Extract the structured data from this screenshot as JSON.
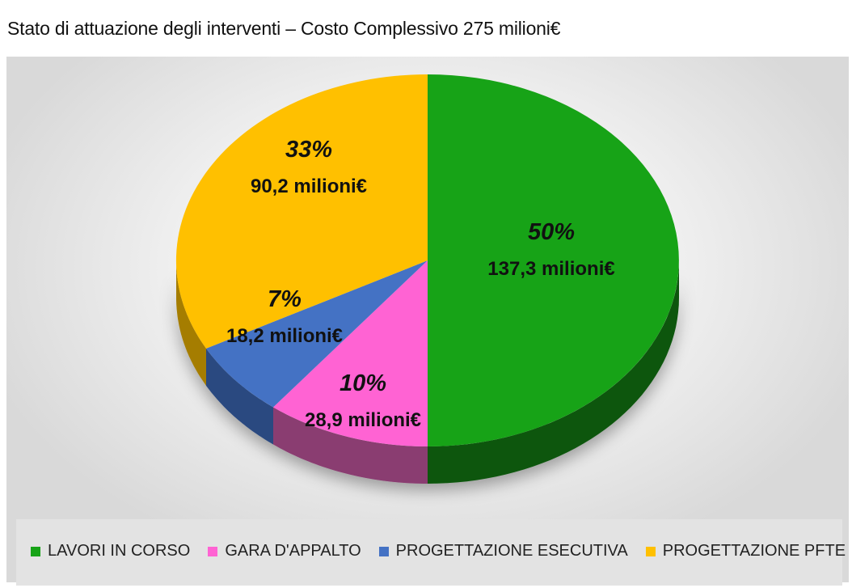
{
  "title": "Stato di attuazione degli interventi – Costo Complessivo 275 milioni€",
  "chart_data": {
    "type": "pie",
    "title": "Stato di attuazione degli interventi – Costo Complessivo 275 milioni€",
    "categories": [
      "LAVORI IN CORSO",
      "GARA D'APPALTO",
      "PROGETTAZIONE ESECUTIVA",
      "PROGETTAZIONE PFTE"
    ],
    "values": [
      137.3,
      28.9,
      18.2,
      90.2
    ],
    "percent_labels": [
      "50%",
      "10%",
      "7%",
      "33%"
    ],
    "value_labels": [
      "137,3 milioni€",
      "28,9 milioni€",
      "18,2 milioni€",
      "90,2 milioni€"
    ],
    "colors": [
      "#17a317",
      "#ff63d3",
      "#4472c4",
      "#ffc000"
    ],
    "side_colors": [
      "#0b560b",
      "#8a3c71",
      "#2c4a80",
      "#a57d00"
    ],
    "legend_position": "bottom"
  },
  "legend": {
    "items": [
      {
        "label": "LAVORI IN CORSO",
        "color": "#17a317"
      },
      {
        "label": "GARA D'APPALTO",
        "color": "#ff63d3"
      },
      {
        "label": "PROGETTAZIONE ESECUTIVA",
        "color": "#4472c4"
      },
      {
        "label": "PROGETTAZIONE PFTE",
        "color": "#ffc000"
      }
    ]
  }
}
